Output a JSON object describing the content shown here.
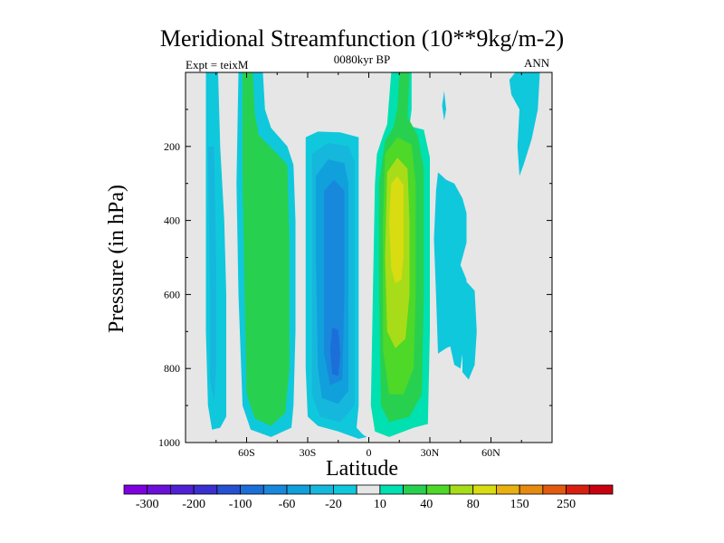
{
  "chart_data": {
    "type": "contour",
    "title": "Meridional Streamfunction (10**9kg/m-2)",
    "subtitle": "0080kyr BP",
    "left_label": "Expt = teixM",
    "right_label": "ANN",
    "xlabel": "Latitude",
    "ylabel": "Pressure (in hPa)",
    "xlim": [
      -90,
      90
    ],
    "ylim": [
      1000,
      0
    ],
    "x_ticks": [
      {
        "value": -60,
        "label": "60S"
      },
      {
        "value": -30,
        "label": "30S"
      },
      {
        "value": 0,
        "label": "0"
      },
      {
        "value": 30,
        "label": "30N"
      },
      {
        "value": 60,
        "label": "60N"
      }
    ],
    "y_ticks": [
      {
        "value": 200,
        "label": "200"
      },
      {
        "value": 400,
        "label": "400"
      },
      {
        "value": 600,
        "label": "600"
      },
      {
        "value": 800,
        "label": "800"
      },
      {
        "value": 1000,
        "label": "1000"
      }
    ],
    "background_color": "#e6e6e6",
    "levels": [
      -300,
      -250,
      -200,
      -150,
      -100,
      -80,
      -60,
      -40,
      -20,
      -10,
      10,
      20,
      40,
      60,
      80,
      100,
      150,
      200,
      250,
      300
    ],
    "colorbar_labels": [
      "-300",
      "-200",
      "-100",
      "-60",
      "-20",
      "10",
      "40",
      "80",
      "150",
      "250"
    ],
    "colorbar_colors": [
      "#7e00e0",
      "#6a10d8",
      "#5020d4",
      "#3a30d0",
      "#2550d0",
      "#1c6fd8",
      "#1888dc",
      "#10a0dc",
      "#16b7dc",
      "#10c8dc",
      "#e6e6e6",
      "#00e0b0",
      "#28d050",
      "#4ed828",
      "#a8dc18",
      "#d8dc10",
      "#e8b010",
      "#e68a10",
      "#e05a10",
      "#d82010",
      "#c80010"
    ],
    "regions": [
      {
        "color": "#10c8dc",
        "points": [
          [
            -80,
            0
          ],
          [
            -74,
            0
          ],
          [
            -73,
            200
          ],
          [
            -71,
            400
          ],
          [
            -70,
            600
          ],
          [
            -70,
            800
          ],
          [
            -70,
            930
          ],
          [
            -73,
            960
          ],
          [
            -77,
            965
          ],
          [
            -79,
            900
          ],
          [
            -80,
            700
          ],
          [
            -80,
            400
          ]
        ]
      },
      {
        "color": "#16b7dc",
        "points": [
          [
            -79,
            200
          ],
          [
            -76,
            200
          ],
          [
            -75,
            500
          ],
          [
            -75,
            800
          ],
          [
            -76,
            890
          ],
          [
            -78,
            830
          ],
          [
            -78,
            600
          ]
        ]
      },
      {
        "color": "#10c8dc",
        "points": [
          [
            -64,
            0
          ],
          [
            -52,
            0
          ],
          [
            -51,
            100
          ],
          [
            -48,
            150
          ],
          [
            -40,
            200
          ],
          [
            -37,
            250
          ],
          [
            -36,
            400
          ],
          [
            -36,
            700
          ],
          [
            -37,
            900
          ],
          [
            -38,
            960
          ],
          [
            -48,
            985
          ],
          [
            -58,
            965
          ],
          [
            -62,
            900
          ],
          [
            -64,
            600
          ],
          [
            -65,
            300
          ]
        ]
      },
      {
        "color": "#28d050",
        "points": [
          [
            -62,
            0
          ],
          [
            -57,
            0
          ],
          [
            -56,
            110
          ],
          [
            -54,
            170
          ],
          [
            -45,
            220
          ],
          [
            -40,
            250
          ],
          [
            -39,
            450
          ],
          [
            -39,
            800
          ],
          [
            -41,
            920
          ],
          [
            -48,
            955
          ],
          [
            -56,
            935
          ],
          [
            -60,
            870
          ],
          [
            -61,
            600
          ],
          [
            -62,
            300
          ]
        ]
      },
      {
        "color": "#10c8dc",
        "points": [
          [
            -31,
            175
          ],
          [
            -25,
            160
          ],
          [
            -14,
            162
          ],
          [
            -5,
            175
          ],
          [
            -5,
            400
          ],
          [
            -5,
            700
          ],
          [
            -5,
            900
          ],
          [
            -6,
            960
          ],
          [
            -3,
            978
          ],
          [
            -1,
            985
          ],
          [
            -5,
            990
          ],
          [
            -15,
            970
          ],
          [
            -25,
            955
          ],
          [
            -30,
            930
          ],
          [
            -31,
            800
          ],
          [
            -31,
            400
          ]
        ]
      },
      {
        "color": "#16b7dc",
        "points": [
          [
            -28,
            220
          ],
          [
            -20,
            190
          ],
          [
            -10,
            200
          ],
          [
            -7,
            240
          ],
          [
            -7,
            500
          ],
          [
            -7,
            900
          ],
          [
            -14,
            945
          ],
          [
            -24,
            930
          ],
          [
            -28,
            870
          ],
          [
            -28,
            500
          ]
        ]
      },
      {
        "color": "#10a0dc",
        "points": [
          [
            -26,
            280
          ],
          [
            -20,
            235
          ],
          [
            -12,
            245
          ],
          [
            -10,
            300
          ],
          [
            -10,
            600
          ],
          [
            -10,
            860
          ],
          [
            -15,
            895
          ],
          [
            -23,
            880
          ],
          [
            -25,
            800
          ],
          [
            -26,
            500
          ]
        ]
      },
      {
        "color": "#1888dc",
        "points": [
          [
            -22,
            320
          ],
          [
            -17,
            290
          ],
          [
            -12,
            320
          ],
          [
            -12,
            600
          ],
          [
            -13,
            830
          ],
          [
            -19,
            845
          ],
          [
            -22,
            760
          ],
          [
            -22,
            500
          ]
        ]
      },
      {
        "color": "#1c6fd8",
        "points": [
          [
            -18,
            690
          ],
          [
            -15,
            695
          ],
          [
            -14,
            760
          ],
          [
            -15,
            820
          ],
          [
            -18,
            815
          ],
          [
            -19,
            750
          ]
        ]
      },
      {
        "color": "#00e0b0",
        "points": [
          [
            11,
            0
          ],
          [
            21,
            0
          ],
          [
            21,
            100
          ],
          [
            20,
            145
          ],
          [
            27,
            155
          ],
          [
            30,
            230
          ],
          [
            30,
            400
          ],
          [
            30,
            700
          ],
          [
            29,
            950
          ],
          [
            22,
            960
          ],
          [
            10,
            985
          ],
          [
            3,
            970
          ],
          [
            1,
            900
          ],
          [
            2,
            600
          ],
          [
            3,
            300
          ],
          [
            4,
            220
          ],
          [
            7,
            170
          ],
          [
            9,
            140
          ]
        ]
      },
      {
        "color": "#28d050",
        "points": [
          [
            15,
            0
          ],
          [
            20,
            0
          ],
          [
            19,
            120
          ],
          [
            24,
            170
          ],
          [
            27,
            260
          ],
          [
            27,
            600
          ],
          [
            26,
            870
          ],
          [
            20,
            930
          ],
          [
            10,
            945
          ],
          [
            6,
            900
          ],
          [
            5,
            600
          ],
          [
            5,
            300
          ],
          [
            8,
            185
          ],
          [
            12,
            150
          ],
          [
            14,
            100
          ]
        ]
      },
      {
        "color": "#4ed828",
        "points": [
          [
            8,
            220
          ],
          [
            14,
            175
          ],
          [
            21,
            195
          ],
          [
            23,
            300
          ],
          [
            23,
            600
          ],
          [
            22,
            800
          ],
          [
            17,
            870
          ],
          [
            10,
            870
          ],
          [
            7,
            750
          ],
          [
            7,
            400
          ]
        ]
      },
      {
        "color": "#a8dc18",
        "points": [
          [
            9,
            270
          ],
          [
            14,
            230
          ],
          [
            19,
            260
          ],
          [
            20,
            400
          ],
          [
            20,
            600
          ],
          [
            18,
            720
          ],
          [
            13,
            745
          ],
          [
            9,
            700
          ],
          [
            8,
            500
          ]
        ]
      },
      {
        "color": "#d8dc10",
        "points": [
          [
            11,
            300
          ],
          [
            14,
            280
          ],
          [
            17,
            305
          ],
          [
            17,
            500
          ],
          [
            16,
            560
          ],
          [
            13,
            570
          ],
          [
            11,
            530
          ],
          [
            10,
            400
          ]
        ]
      },
      {
        "color": "#10c8dc",
        "points": [
          [
            34,
            270
          ],
          [
            38,
            290
          ],
          [
            42,
            300
          ],
          [
            46,
            340
          ],
          [
            48,
            380
          ],
          [
            48,
            460
          ],
          [
            45,
            520
          ],
          [
            48,
            560
          ],
          [
            47,
            720
          ],
          [
            45,
            800
          ],
          [
            42,
            790
          ],
          [
            40,
            740
          ],
          [
            38,
            745
          ],
          [
            34,
            760
          ],
          [
            33,
            600
          ],
          [
            32,
            450
          ],
          [
            33,
            320
          ]
        ]
      },
      {
        "color": "#10c8dc",
        "points": [
          [
            47,
            560
          ],
          [
            52,
            590
          ],
          [
            53,
            700
          ],
          [
            52,
            790
          ],
          [
            49,
            830
          ],
          [
            46,
            810
          ],
          [
            46,
            700
          ]
        ]
      },
      {
        "color": "#10c8dc",
        "points": [
          [
            37,
            50
          ],
          [
            38,
            100
          ],
          [
            37,
            130
          ],
          [
            36,
            90
          ]
        ]
      },
      {
        "color": "#10c8dc",
        "points": [
          [
            72,
            0
          ],
          [
            84,
            0
          ],
          [
            83,
            100
          ],
          [
            80,
            180
          ],
          [
            76,
            250
          ],
          [
            74,
            280
          ],
          [
            73,
            200
          ],
          [
            74,
            100
          ],
          [
            70,
            60
          ],
          [
            69,
            20
          ]
        ]
      }
    ]
  }
}
